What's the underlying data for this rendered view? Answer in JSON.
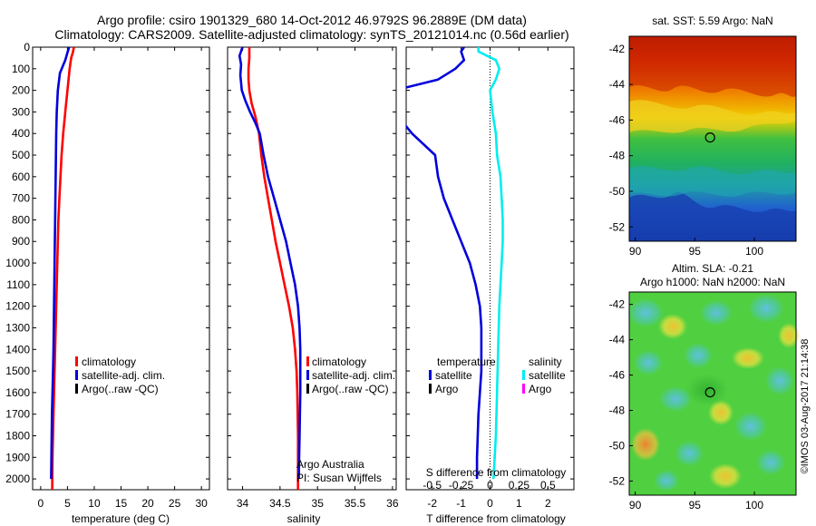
{
  "title": {
    "line1": "Argo profile: csiro 1901329_680 14-Oct-2012 46.9792S 96.2889E (DM data)",
    "line2": "Climatology: CARS2009. Satellite-adjusted climatology: synTS_20121014.nc (0.56d earlier)"
  },
  "colors": {
    "climatology": "#ff0000",
    "satellite": "#0000dd",
    "argo": "#000000",
    "sat_salinity": "#00eeee",
    "argo_salinity": "#ff00ff"
  },
  "depth_axis": {
    "ticks": [
      0,
      100,
      200,
      300,
      400,
      500,
      600,
      700,
      800,
      900,
      1000,
      1100,
      1200,
      1300,
      1400,
      1500,
      1600,
      1700,
      1800,
      1900,
      2000
    ],
    "range": [
      0,
      2050
    ]
  },
  "chart_data": [
    {
      "type": "line",
      "id": "temperature",
      "xlabel": "temperature (deg C)",
      "xlim": [
        -1.5,
        31.5
      ],
      "xticks": [
        0,
        5,
        10,
        15,
        20,
        25,
        30
      ],
      "ylim": [
        0,
        2050
      ],
      "legend": [
        "climatology",
        "satellite-adj. clim.",
        "Argo(..raw -QC)"
      ],
      "series": [
        {
          "name": "climatology",
          "color": "#ff0000",
          "x": [
            6.2,
            6.0,
            5.7,
            5.4,
            5.0,
            4.6,
            4.2,
            3.9,
            3.7,
            3.5,
            3.3,
            3.2,
            3.1,
            3.0,
            2.9,
            2.8,
            2.7,
            2.6,
            2.5,
            2.4,
            2.3,
            2.2,
            2.15
          ],
          "y": [
            0,
            25,
            50,
            100,
            200,
            300,
            400,
            500,
            600,
            700,
            800,
            900,
            1000,
            1100,
            1200,
            1300,
            1400,
            1500,
            1600,
            1700,
            1800,
            1900,
            2050
          ]
        },
        {
          "name": "satellite-adj. clim.",
          "color": "#0000dd",
          "x": [
            5.3,
            5.0,
            4.6,
            3.6,
            3.2,
            3.0,
            2.9,
            2.85,
            2.8,
            2.75,
            2.7,
            2.65,
            2.6,
            2.55,
            2.5,
            2.45,
            2.4,
            2.3,
            2.2,
            2.1,
            2.05,
            1.95
          ],
          "y": [
            0,
            25,
            60,
            120,
            200,
            300,
            400,
            500,
            600,
            700,
            800,
            900,
            1000,
            1100,
            1200,
            1300,
            1400,
            1500,
            1600,
            1700,
            1800,
            2000
          ]
        }
      ]
    },
    {
      "type": "line",
      "id": "salinity",
      "xlabel": "salinity",
      "xlim": [
        33.8,
        36.05
      ],
      "xticks": [
        34,
        34.5,
        35,
        35.5,
        36
      ],
      "xticklabels": [
        "34",
        "34.5",
        "35",
        "35.5",
        "36"
      ],
      "ylim": [
        0,
        2050
      ],
      "legend": [
        "climatology",
        "satellite-adj. clim.",
        "Argo(..raw -QC)"
      ],
      "annotation": [
        "Argo Australia",
        "PI: Susan Wijffels"
      ],
      "series": [
        {
          "name": "climatology",
          "color": "#ff0000",
          "x": [
            34.09,
            34.09,
            34.08,
            34.08,
            34.09,
            34.12,
            34.17,
            34.22,
            34.25,
            34.29,
            34.34,
            34.39,
            34.44,
            34.5,
            34.56,
            34.62,
            34.67,
            34.7,
            34.72,
            34.73,
            34.74,
            34.74
          ],
          "y": [
            0,
            50,
            100,
            150,
            200,
            260,
            320,
            400,
            500,
            600,
            700,
            800,
            900,
            1000,
            1100,
            1200,
            1300,
            1400,
            1500,
            1600,
            1800,
            2050
          ]
        },
        {
          "name": "satellite-adj. clim.",
          "color": "#0000dd",
          "x": [
            34.0,
            33.96,
            33.98,
            33.97,
            33.99,
            34.04,
            34.1,
            34.17,
            34.23,
            34.28,
            34.34,
            34.42,
            34.5,
            34.58,
            34.64,
            34.7,
            34.74,
            34.76,
            34.77,
            34.77,
            34.76,
            34.75
          ],
          "y": [
            0,
            40,
            80,
            130,
            200,
            250,
            300,
            350,
            400,
            500,
            600,
            700,
            800,
            900,
            1000,
            1100,
            1200,
            1300,
            1400,
            1600,
            1800,
            2000
          ]
        }
      ]
    },
    {
      "type": "line",
      "id": "difference",
      "xlabel": "T difference from climatology",
      "top_xlabel": "S difference from climatology",
      "xlim": [
        -2.9,
        2.9
      ],
      "xticks": [
        -2,
        -1,
        0,
        1,
        2
      ],
      "top_xticks": [
        -0.5,
        -0.25,
        0,
        0.25,
        0.5
      ],
      "top_xticklabels": [
        "-0.5",
        "-0.25",
        "0",
        "0.25",
        "0.5"
      ],
      "ylim": [
        0,
        2050
      ],
      "legend_temperature": {
        "title": "temperature",
        "items": [
          "satellite",
          "Argo"
        ]
      },
      "legend_salinity": {
        "title": "salinity",
        "items": [
          "satellite",
          "Argo"
        ]
      },
      "series": [
        {
          "name": "temperature satellite",
          "color": "#0000dd",
          "x": [
            -0.9,
            -1.0,
            -0.9,
            -1.2,
            -1.8,
            -3.3,
            -3.3,
            -2.7,
            -1.9,
            -1.8,
            -1.6,
            -1.3,
            -1.0,
            -0.7,
            -0.5,
            -0.35,
            -0.3,
            -0.3,
            -0.3,
            -0.35,
            -0.4,
            -0.45,
            -0.45
          ],
          "y": [
            0,
            20,
            60,
            100,
            150,
            200,
            300,
            400,
            500,
            600,
            700,
            800,
            900,
            1000,
            1100,
            1200,
            1300,
            1400,
            1500,
            1600,
            1700,
            1900,
            2000
          ]
        },
        {
          "name": "salinity satellite",
          "color": "#00eeee",
          "x": [
            -0.1,
            -0.1,
            0.05,
            0.08,
            0.05,
            0.0,
            0.02,
            0.05,
            0.06,
            0.09,
            0.1,
            0.11,
            0.11,
            0.1,
            0.09,
            0.08,
            0.07,
            0.06,
            0.05,
            0.04,
            0.03
          ],
          "y": [
            0,
            20,
            60,
            100,
            150,
            200,
            300,
            400,
            500,
            600,
            700,
            800,
            900,
            1000,
            1100,
            1200,
            1400,
            1600,
            1800,
            1900,
            2000
          ]
        }
      ]
    },
    {
      "type": "heatmap",
      "id": "sst_map",
      "title": "sat. SST: 5.59 Argo: NaN",
      "xlim": [
        89.5,
        103.5
      ],
      "ylim": [
        -52.8,
        -41.3
      ],
      "xticks": [
        90,
        95,
        100
      ],
      "yticks": [
        -42,
        -44,
        -46,
        -48,
        -50,
        -52
      ],
      "marker": {
        "lon": 96.29,
        "lat": -46.98
      }
    },
    {
      "type": "heatmap",
      "id": "sla_map",
      "title": "Altim. SLA: -0.21",
      "subtitle": "Argo h1000: NaN h2000: NaN",
      "xlim": [
        89.5,
        103.5
      ],
      "ylim": [
        -52.8,
        -41.3
      ],
      "xticks": [
        90,
        95,
        100
      ],
      "yticks": [
        -42,
        -44,
        -46,
        -48,
        -50,
        -52
      ],
      "marker": {
        "lon": 96.29,
        "lat": -46.98
      }
    }
  ],
  "credit": "©IMOS 03-Aug-2017 21:14:38"
}
